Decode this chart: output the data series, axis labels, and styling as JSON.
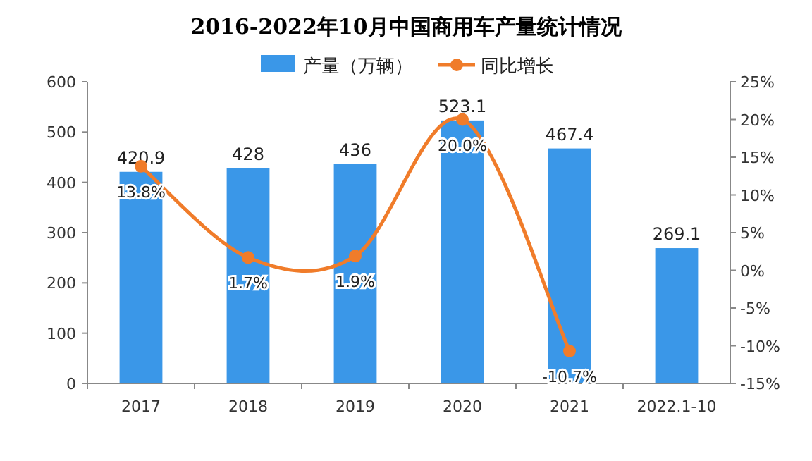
{
  "chart_data": {
    "type": "bar",
    "title": "2016-2022年10月中国商用车产量统计情况",
    "categories": [
      "2017",
      "2018",
      "2019",
      "2020",
      "2021",
      "2022.1-10"
    ],
    "series": [
      {
        "name": "产量（万辆）",
        "color": "#3a97e8",
        "values": [
          420.9,
          428,
          436,
          523.1,
          467.4,
          269.1
        ]
      },
      {
        "name": "同比增长",
        "type": "line",
        "axis": "y2",
        "color": "#f07c2a",
        "values": [
          13.8,
          1.7,
          1.9,
          20.0,
          -10.7,
          null
        ],
        "value_labels": [
          "13.8%",
          "1.7%",
          "1.9%",
          "20.0%",
          "-10.7%",
          null
        ]
      }
    ],
    "ylim": [
      0,
      600
    ],
    "yticks": [
      0,
      100,
      200,
      300,
      400,
      500,
      600
    ],
    "y2lim": [
      -15,
      25
    ],
    "y2ticks": [
      {
        "value": -15,
        "label": "-15%"
      },
      {
        "value": -10,
        "label": "-10%"
      },
      {
        "value": -5,
        "label": "-5%"
      },
      {
        "value": 0,
        "label": "0%"
      },
      {
        "value": 5,
        "label": "5%"
      },
      {
        "value": 10,
        "label": "10%"
      },
      {
        "value": 15,
        "label": "15%"
      },
      {
        "value": 20,
        "label": "20%"
      },
      {
        "value": 25,
        "label": "25%"
      }
    ],
    "data_labels": true,
    "legend": "top",
    "marker": "circle",
    "grid": false
  }
}
